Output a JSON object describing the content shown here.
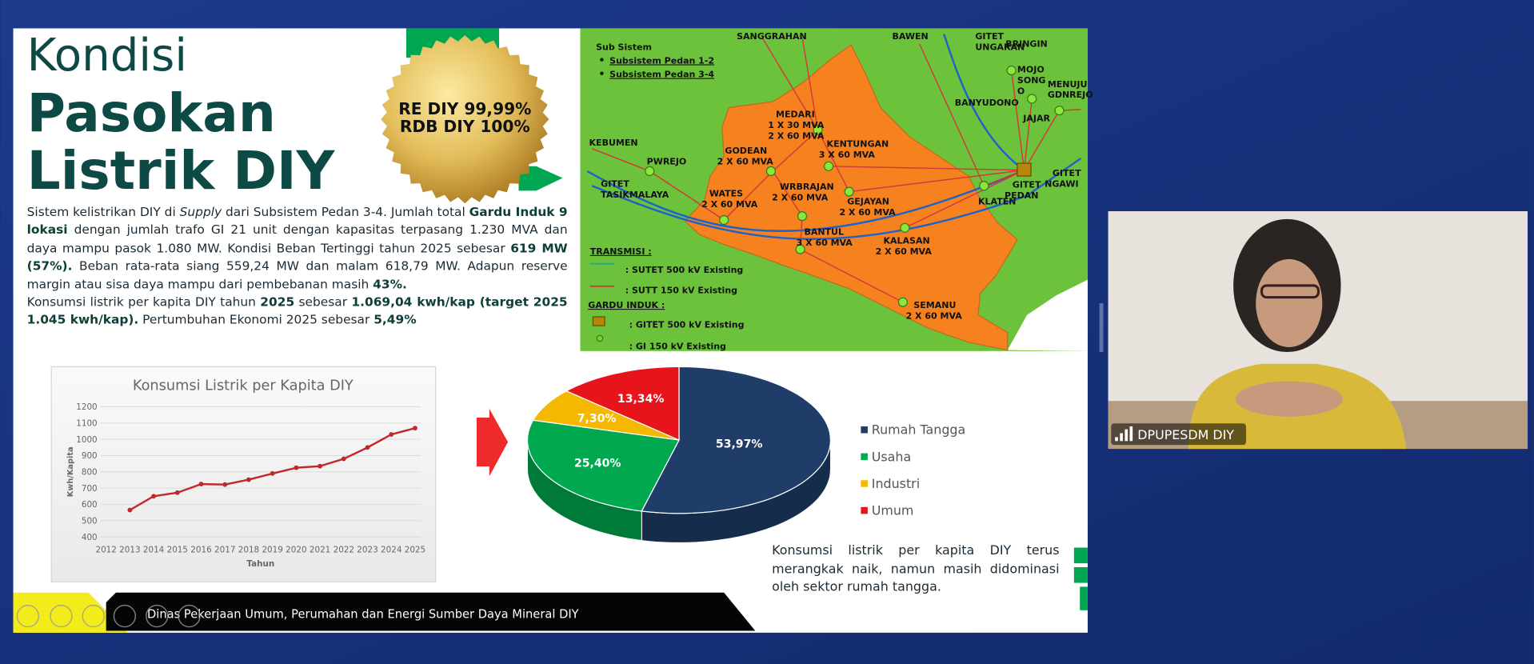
{
  "slide": {
    "title": [
      "Kondisi",
      "Pasokan",
      "Listrik DIY"
    ],
    "badge": [
      "RE DIY 99,99%",
      "RDB DIY 100%"
    ],
    "paragraphs": [
      [
        {
          "text": "Sistem kelistrikan DIY di ",
          "style": "normal"
        },
        {
          "text": "Supply",
          "style": "italic"
        },
        {
          "text": " dari Subsistem Pedan 3-4. Jumlah total ",
          "style": "normal"
        },
        {
          "text": "Gardu Induk 9 lokasi",
          "style": "bold"
        },
        {
          "text": " dengan jumlah trafo GI 21 unit dengan kapasitas terpasang 1.230 MVA dan daya mampu pasok 1.080 MW. Kondisi Beban Tertinggi tahun 2025 sebesar ",
          "style": "normal"
        },
        {
          "text": "619 MW (57%).",
          "style": "bold"
        },
        {
          "text": " Beban rata-rata siang 559,24 MW dan malam 618,79 MW. Adapun reserve margin atau sisa daya mampu dari pembebanan masih ",
          "style": "normal"
        },
        {
          "text": "43%.",
          "style": "bold"
        }
      ],
      [
        {
          "text": "Konsumsi listrik per kapita DIY tahun ",
          "style": "normal"
        },
        {
          "text": "2025",
          "style": "bold"
        },
        {
          "text": " sebesar ",
          "style": "normal"
        },
        {
          "text": "1.069,04 kwh/kap (target 2025 1.045 kwh/kap).",
          "style": "bold"
        },
        {
          "text": " Pertumbuhan Ekonomi 2025 sebesar ",
          "style": "normal"
        },
        {
          "text": "5,49%",
          "style": "bold"
        }
      ]
    ],
    "caption": "Konsumsi listrik per kapita DIY terus merangkak naik, namun masih didominasi oleh sektor rumah tangga.",
    "footer": "Dinas Pekerjaan Umum, Perumahan dan Energi Sumber Daya Mineral DIY"
  },
  "map": {
    "subsystem_title": "Sub Sistem",
    "subsystems": [
      "Subsistem Pedan 1-2",
      "Subsistem Pedan 3-4"
    ],
    "transmission_title": "TRANSMISI :",
    "transmission": [
      ": SUTET 500 kV Existing",
      ": SUTT 150 kV Existing"
    ],
    "substation_title": "GARDU INDUK :",
    "substations": [
      ": GITET 500 kV Existing",
      ": GI 150 kV Existing"
    ],
    "places": [
      [
        "SANGGRAHAN"
      ],
      [
        "BAWEN"
      ],
      [
        "GITET",
        "UNGARAN"
      ],
      [
        "BRINGIN"
      ],
      [
        "MOJO",
        "SONG",
        "O"
      ],
      [
        "MENUJU",
        "GDNREJO"
      ],
      [
        "BANYUDONO"
      ],
      [
        "JAJAR"
      ],
      [
        "KEBUMEN"
      ],
      [
        "PWREJO"
      ],
      [
        "GITET",
        "TASIKMALAYA"
      ],
      [
        "MEDARI",
        "1 X 30 MVA",
        "2 X 60 MVA"
      ],
      [
        "KENTUNGAN",
        "3 X 60 MVA"
      ],
      [
        "GODEAN",
        "2 X 60 MVA"
      ],
      [
        "WATES",
        "2 X 60 MVA"
      ],
      [
        "WRBRAJAN",
        "2 X 60 MVA"
      ],
      [
        "GEJAYAN",
        "2 X 60 MVA"
      ],
      [
        "BANTUL",
        "3 X 60 MVA"
      ],
      [
        "KALASAN",
        "2 X 60 MVA"
      ],
      [
        "SEMANU",
        "2 X 60 MVA"
      ],
      [
        "KLATEN"
      ],
      [
        "GITET",
        "PEDAN"
      ],
      [
        "GITET",
        "NGAWI"
      ]
    ]
  },
  "chart_data": [
    {
      "type": "line",
      "title": "Konsumsi Listrik per Kapita DIY",
      "x_label": "Tahun",
      "y_label": "Kwh/Kapita",
      "categories": [
        "2012",
        "2013",
        "2014",
        "2015",
        "2016",
        "2017",
        "2018",
        "2019",
        "2020",
        "2021",
        "2022",
        "2023",
        "2024",
        "2025"
      ],
      "values": [
        null,
        565,
        650,
        672,
        725,
        722,
        752,
        790,
        825,
        835,
        880,
        950,
        1030,
        1069.04
      ],
      "color": "#c0282d",
      "ylim": [
        400,
        1200
      ],
      "yticks": [
        400,
        500,
        600,
        700,
        800,
        900,
        1000,
        1100,
        1200
      ],
      "grid": true
    },
    {
      "type": "pie",
      "categories": [
        "Rumah Tangga",
        "Usaha",
        "Industri",
        "Umum"
      ],
      "values": [
        53.97,
        25.4,
        7.3,
        13.34
      ],
      "value_labels": [
        "53,97%",
        "25,40%",
        "7,30%",
        "13,34%"
      ],
      "colors": [
        "#1f3d68",
        "#00a94f",
        "#f5b800",
        "#e8141c"
      ]
    }
  ],
  "video": {
    "participant": "DPUPESDM DIY"
  }
}
